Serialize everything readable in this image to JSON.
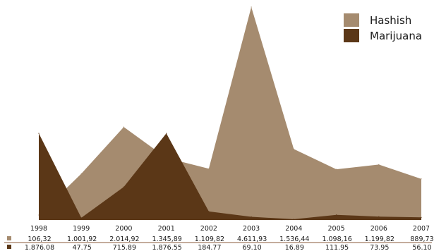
{
  "chart_data": {
    "type": "area",
    "categories": [
      "1998",
      "1999",
      "2000",
      "2001",
      "2002",
      "2003",
      "2004",
      "2005",
      "2006",
      "2007"
    ],
    "ylim": [
      0,
      4611.93
    ],
    "grid": false,
    "legend_position": "top-right",
    "series": [
      {
        "name": "Hashish",
        "color": "#a58b6f",
        "values": [
          106.32,
          1001.92,
          2014.92,
          1345.89,
          1109.82,
          4611.93,
          1536.44,
          1098.16,
          1199.82,
          889.73
        ],
        "labels": [
          "106,32",
          "1.001,92",
          "2.014,92",
          "1.345,89",
          "1.109,82",
          "4.611,93",
          "1.536,44",
          "1.098,16",
          "1.199,82",
          "889,73"
        ]
      },
      {
        "name": "Marijuana",
        "color": "#5b3717",
        "values": [
          1876.08,
          47.75,
          715.89,
          1876.55,
          184.77,
          69.1,
          16.89,
          111.95,
          73.95,
          56.1
        ],
        "labels": [
          "1.876.08",
          "47.75",
          "715.89",
          "1.876.55",
          "184.77",
          "69.10",
          "16.89",
          "111.95",
          "73.95",
          "56.10"
        ]
      }
    ]
  }
}
